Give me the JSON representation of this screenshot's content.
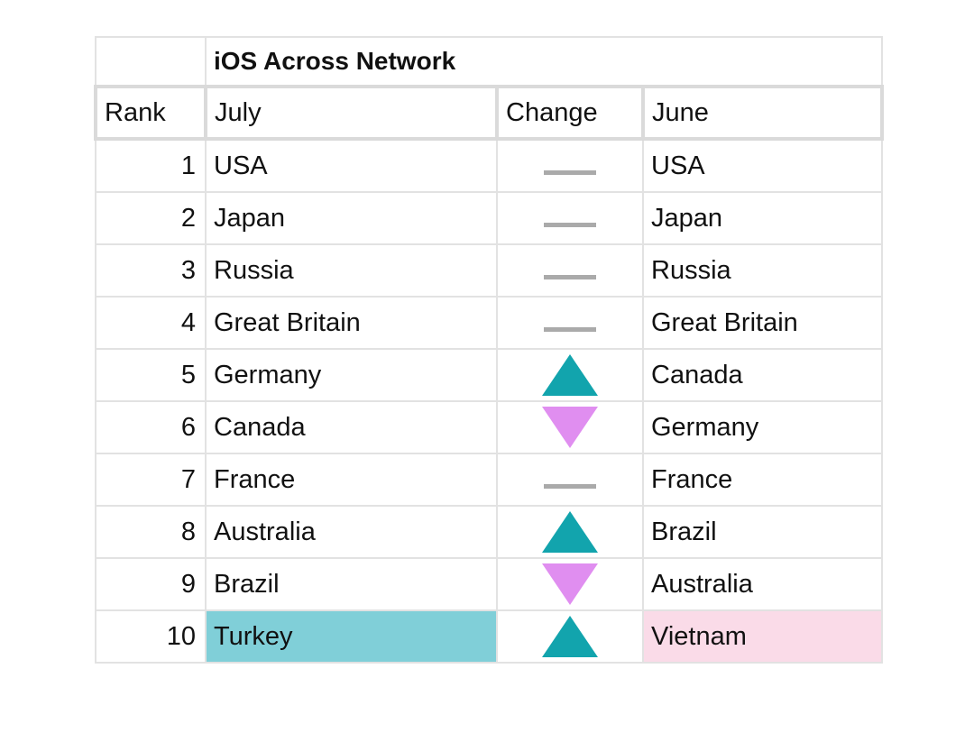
{
  "table": {
    "title": "iOS Across Network",
    "headers": {
      "rank": "Rank",
      "july": "July",
      "change": "Change",
      "june": "June"
    },
    "change_colors": {
      "up": "#12a4ad",
      "down": "#e08ef0",
      "same": "#aaaaaa",
      "highlight_up": "#80cfd8",
      "highlight_down": "#fadbe8"
    },
    "rows": [
      {
        "rank": "1",
        "july": "USA",
        "change": "same",
        "june": "USA"
      },
      {
        "rank": "2",
        "july": "Japan",
        "change": "same",
        "june": "Japan"
      },
      {
        "rank": "3",
        "july": "Russia",
        "change": "same",
        "june": "Russia"
      },
      {
        "rank": "4",
        "july": "Great Britain",
        "change": "same",
        "june": "Great Britain"
      },
      {
        "rank": "5",
        "july": "Germany",
        "change": "up",
        "june": "Canada"
      },
      {
        "rank": "6",
        "july": "Canada",
        "change": "down",
        "june": "Germany"
      },
      {
        "rank": "7",
        "july": "France",
        "change": "same",
        "june": "France"
      },
      {
        "rank": "8",
        "july": "Australia",
        "change": "up",
        "june": "Brazil"
      },
      {
        "rank": "9",
        "july": "Brazil",
        "change": "down",
        "june": "Australia"
      },
      {
        "rank": "10",
        "july": "Turkey",
        "change": "up",
        "june": "Vietnam"
      }
    ]
  }
}
